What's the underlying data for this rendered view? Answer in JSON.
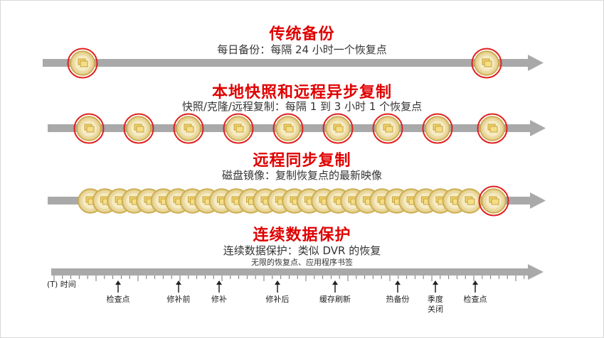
{
  "sections": [
    {
      "title": "传统备份",
      "subtitle": "每日备份：每隔 24 小时一个恢复点"
    },
    {
      "title": "本地快照和远程异步复制",
      "subtitle": "快照/克隆/远程复制：每隔 1 到 3 小时 1 个恢复点"
    },
    {
      "title": "远程同步复制",
      "subtitle": "磁盘镜像：复制恢复点的最新映像"
    },
    {
      "title": "连续数据保护",
      "subtitle": "连续数据保护：类似 DVR 的恢复",
      "note": "无限的恢复点、应用程序书签"
    }
  ],
  "timeline": {
    "axis_label": "(T) 时间",
    "markers": [
      "检查点",
      "修补前",
      "修补",
      "修补后",
      "缓存刷新",
      "热备份",
      "季度\n关闭",
      "检查点"
    ]
  },
  "colors": {
    "arrow": "#a9a9a9",
    "ring": "#e02020",
    "disc_fill": "#f5ecc8",
    "disc_edge": "#c9a94a",
    "title": "#e00000"
  }
}
